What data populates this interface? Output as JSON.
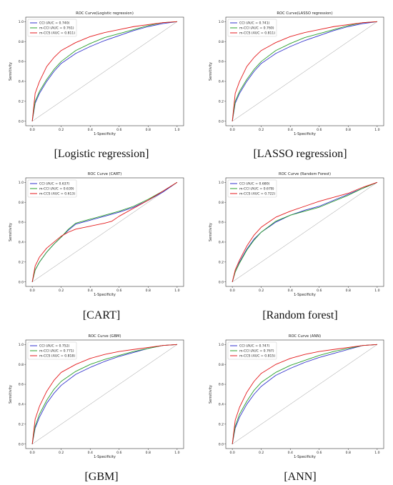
{
  "chart_data": [
    {
      "type": "line",
      "title": "ROC Curve(Logistic regression)",
      "caption": "[Logistic regression]",
      "xlabel": "1-Specificity",
      "ylabel": "Sensitivity",
      "xlim": [
        0,
        1
      ],
      "ylim": [
        0,
        1
      ],
      "xticks": [
        "0.0",
        "0.2",
        "0.4",
        "0.6",
        "0.8",
        "1.0"
      ],
      "yticks": [
        "0.0",
        "0.2",
        "0.4",
        "0.6",
        "0.8",
        "1.0"
      ],
      "legend_position": "top-left",
      "series": [
        {
          "name": "CCI (AUC = 0.740)",
          "color": "#3333cc",
          "x": [
            0,
            0.02,
            0.05,
            0.1,
            0.15,
            0.2,
            0.3,
            0.4,
            0.5,
            0.6,
            0.7,
            0.8,
            0.9,
            1.0
          ],
          "y": [
            0,
            0.18,
            0.28,
            0.4,
            0.5,
            0.58,
            0.68,
            0.75,
            0.81,
            0.86,
            0.91,
            0.95,
            0.98,
            1.0
          ]
        },
        {
          "name": "m-CCI (AUC = 0.761)",
          "color": "#2ca02c",
          "x": [
            0,
            0.02,
            0.05,
            0.1,
            0.15,
            0.2,
            0.3,
            0.4,
            0.5,
            0.6,
            0.7,
            0.8,
            0.9,
            1.0
          ],
          "y": [
            0,
            0.2,
            0.3,
            0.42,
            0.52,
            0.6,
            0.71,
            0.78,
            0.84,
            0.88,
            0.92,
            0.96,
            0.99,
            1.0
          ]
        },
        {
          "name": "m-CCS (AUC = 0.811)",
          "color": "#e41a1c",
          "x": [
            0,
            0.02,
            0.05,
            0.1,
            0.15,
            0.2,
            0.3,
            0.4,
            0.5,
            0.6,
            0.7,
            0.8,
            0.9,
            1.0
          ],
          "y": [
            0,
            0.28,
            0.4,
            0.55,
            0.64,
            0.71,
            0.79,
            0.85,
            0.89,
            0.92,
            0.95,
            0.97,
            0.99,
            1.0
          ]
        }
      ]
    },
    {
      "type": "line",
      "title": "ROC Curve(LASSO regression)",
      "caption": "[LASSO regression]",
      "xlabel": "1-Specificity",
      "ylabel": "Sensitivity",
      "xlim": [
        0,
        1
      ],
      "ylim": [
        0,
        1
      ],
      "xticks": [
        "0.0",
        "0.2",
        "0.4",
        "0.6",
        "0.8",
        "1.0"
      ],
      "yticks": [
        "0.0",
        "0.2",
        "0.4",
        "0.6",
        "0.8",
        "1.0"
      ],
      "legend_position": "top-left",
      "series": [
        {
          "name": "CCI (AUC = 0.741)",
          "color": "#3333cc",
          "x": [
            0,
            0.02,
            0.05,
            0.1,
            0.15,
            0.2,
            0.3,
            0.4,
            0.5,
            0.6,
            0.7,
            0.8,
            0.9,
            1.0
          ],
          "y": [
            0,
            0.18,
            0.28,
            0.4,
            0.5,
            0.58,
            0.68,
            0.75,
            0.81,
            0.86,
            0.91,
            0.95,
            0.98,
            1.0
          ]
        },
        {
          "name": "m-CCI (AUC = 0.760)",
          "color": "#2ca02c",
          "x": [
            0,
            0.02,
            0.05,
            0.1,
            0.15,
            0.2,
            0.3,
            0.4,
            0.5,
            0.6,
            0.7,
            0.8,
            0.9,
            1.0
          ],
          "y": [
            0,
            0.2,
            0.3,
            0.42,
            0.52,
            0.6,
            0.71,
            0.78,
            0.84,
            0.88,
            0.92,
            0.96,
            0.99,
            1.0
          ]
        },
        {
          "name": "m-CCS (AUC = 0.811)",
          "color": "#e41a1c",
          "x": [
            0,
            0.02,
            0.05,
            0.1,
            0.15,
            0.2,
            0.3,
            0.4,
            0.5,
            0.6,
            0.7,
            0.8,
            0.9,
            1.0
          ],
          "y": [
            0,
            0.28,
            0.4,
            0.55,
            0.64,
            0.71,
            0.79,
            0.85,
            0.89,
            0.92,
            0.95,
            0.97,
            0.99,
            1.0
          ]
        }
      ]
    },
    {
      "type": "line",
      "title": "ROC Curve (CART)",
      "caption": "[CART]",
      "xlabel": "1-Specificity",
      "ylabel": "Sensitivity",
      "xlim": [
        0,
        1
      ],
      "ylim": [
        0,
        1
      ],
      "xticks": [
        "0.0",
        "0.2",
        "0.4",
        "0.6",
        "0.8",
        "1.0"
      ],
      "yticks": [
        "0.0",
        "0.2",
        "0.4",
        "0.6",
        "0.8",
        "1.0"
      ],
      "legend_position": "top-left",
      "series": [
        {
          "name": "CCI (AUC = 0.637)",
          "color": "#3333cc",
          "x": [
            0,
            0.02,
            0.05,
            0.1,
            0.15,
            0.2,
            0.25,
            0.3,
            0.4,
            0.5,
            0.6,
            0.7,
            0.8,
            0.9,
            1.0
          ],
          "y": [
            0,
            0.12,
            0.2,
            0.3,
            0.38,
            0.45,
            0.52,
            0.58,
            0.62,
            0.66,
            0.7,
            0.75,
            0.82,
            0.9,
            1.0
          ]
        },
        {
          "name": "m-CCI (AUC = 0.639)",
          "color": "#2ca02c",
          "x": [
            0,
            0.02,
            0.05,
            0.1,
            0.15,
            0.2,
            0.25,
            0.3,
            0.4,
            0.5,
            0.6,
            0.7,
            0.8,
            0.9,
            1.0
          ],
          "y": [
            0,
            0.12,
            0.2,
            0.3,
            0.38,
            0.45,
            0.53,
            0.59,
            0.63,
            0.67,
            0.71,
            0.76,
            0.83,
            0.91,
            1.0
          ]
        },
        {
          "name": "m-CCS (AUC = 0.613)",
          "color": "#e41a1c",
          "x": [
            0,
            0.02,
            0.05,
            0.1,
            0.15,
            0.2,
            0.25,
            0.3,
            0.4,
            0.5,
            0.55,
            0.6,
            0.7,
            0.8,
            0.9,
            1.0
          ],
          "y": [
            0,
            0.16,
            0.25,
            0.34,
            0.4,
            0.46,
            0.5,
            0.53,
            0.56,
            0.59,
            0.61,
            0.66,
            0.74,
            0.82,
            0.91,
            1.0
          ]
        }
      ]
    },
    {
      "type": "line",
      "title": "ROC Curve (Random Forest)",
      "caption": "[Random forest]",
      "xlabel": "1-Specificity",
      "ylabel": "Sensitivity",
      "xlim": [
        0,
        1
      ],
      "ylim": [
        0,
        1
      ],
      "xticks": [
        "0.0",
        "0.2",
        "0.4",
        "0.6",
        "0.8",
        "1.0"
      ],
      "yticks": [
        "0.0",
        "0.2",
        "0.4",
        "0.6",
        "0.8",
        "1.0"
      ],
      "legend_position": "top-left",
      "series": [
        {
          "name": "CCI (AUC = 0.680)",
          "color": "#3333cc",
          "x": [
            0,
            0.02,
            0.05,
            0.1,
            0.15,
            0.2,
            0.3,
            0.4,
            0.5,
            0.6,
            0.7,
            0.8,
            0.9,
            1.0
          ],
          "y": [
            0,
            0.1,
            0.2,
            0.33,
            0.43,
            0.5,
            0.6,
            0.67,
            0.72,
            0.76,
            0.82,
            0.88,
            0.94,
            1.0
          ]
        },
        {
          "name": "m-CCI (AUC = 0.678)",
          "color": "#2ca02c",
          "x": [
            0,
            0.02,
            0.05,
            0.1,
            0.15,
            0.2,
            0.3,
            0.4,
            0.5,
            0.6,
            0.7,
            0.8,
            0.9,
            1.0
          ],
          "y": [
            0,
            0.1,
            0.19,
            0.32,
            0.42,
            0.5,
            0.61,
            0.67,
            0.71,
            0.75,
            0.81,
            0.87,
            0.94,
            1.0
          ]
        },
        {
          "name": "m-CCS (AUC = 0.722)",
          "color": "#e41a1c",
          "x": [
            0,
            0.02,
            0.05,
            0.1,
            0.15,
            0.2,
            0.3,
            0.4,
            0.5,
            0.6,
            0.7,
            0.8,
            0.9,
            1.0
          ],
          "y": [
            0,
            0.12,
            0.22,
            0.36,
            0.47,
            0.55,
            0.65,
            0.71,
            0.76,
            0.81,
            0.85,
            0.89,
            0.95,
            1.0
          ]
        }
      ]
    },
    {
      "type": "line",
      "title": "ROC Curve (GBM)",
      "caption": "[GBM]",
      "xlabel": "1-Specificity",
      "ylabel": "Sensitivity",
      "xlim": [
        0,
        1
      ],
      "ylim": [
        0,
        1
      ],
      "xticks": [
        "0.0",
        "0.2",
        "0.4",
        "0.6",
        "0.8",
        "1.0"
      ],
      "yticks": [
        "0.0",
        "0.2",
        "0.4",
        "0.6",
        "0.8",
        "1.0"
      ],
      "legend_position": "top-left",
      "series": [
        {
          "name": "CCI (AUC = 0.752)",
          "color": "#3333cc",
          "x": [
            0,
            0.02,
            0.05,
            0.1,
            0.15,
            0.2,
            0.3,
            0.4,
            0.5,
            0.6,
            0.7,
            0.8,
            0.9,
            1.0
          ],
          "y": [
            0,
            0.16,
            0.27,
            0.41,
            0.51,
            0.59,
            0.7,
            0.77,
            0.83,
            0.88,
            0.92,
            0.96,
            0.99,
            1.0
          ]
        },
        {
          "name": "m-CCI (AUC = 0.771)",
          "color": "#2ca02c",
          "x": [
            0,
            0.02,
            0.05,
            0.1,
            0.15,
            0.2,
            0.3,
            0.4,
            0.5,
            0.6,
            0.7,
            0.8,
            0.9,
            1.0
          ],
          "y": [
            0,
            0.18,
            0.3,
            0.44,
            0.55,
            0.63,
            0.73,
            0.8,
            0.85,
            0.89,
            0.93,
            0.96,
            0.99,
            1.0
          ]
        },
        {
          "name": "m-CCS (AUC = 0.818)",
          "color": "#e41a1c",
          "x": [
            0,
            0.02,
            0.05,
            0.1,
            0.15,
            0.2,
            0.3,
            0.4,
            0.5,
            0.6,
            0.7,
            0.8,
            0.9,
            1.0
          ],
          "y": [
            0,
            0.25,
            0.38,
            0.53,
            0.64,
            0.72,
            0.8,
            0.86,
            0.9,
            0.93,
            0.95,
            0.97,
            0.99,
            1.0
          ]
        }
      ]
    },
    {
      "type": "line",
      "title": "ROC Curve (ANN)",
      "caption": "[ANN]",
      "xlabel": "1-Specificity",
      "ylabel": "Sensitivity",
      "xlim": [
        0,
        1
      ],
      "ylim": [
        0,
        1
      ],
      "xticks": [
        "0.0",
        "0.2",
        "0.4",
        "0.6",
        "0.8",
        "1.0"
      ],
      "yticks": [
        "0.0",
        "0.2",
        "0.4",
        "0.6",
        "0.8",
        "1.0"
      ],
      "legend_position": "top-left",
      "series": [
        {
          "name": "CCI (AUC = 0.747)",
          "color": "#3333cc",
          "x": [
            0,
            0.02,
            0.05,
            0.1,
            0.15,
            0.2,
            0.3,
            0.4,
            0.5,
            0.6,
            0.7,
            0.8,
            0.9,
            1.0
          ],
          "y": [
            0,
            0.16,
            0.27,
            0.4,
            0.5,
            0.58,
            0.69,
            0.76,
            0.82,
            0.87,
            0.91,
            0.95,
            0.99,
            1.0
          ]
        },
        {
          "name": "m-CCI (AUC = 0.767)",
          "color": "#2ca02c",
          "x": [
            0,
            0.02,
            0.05,
            0.1,
            0.15,
            0.2,
            0.3,
            0.4,
            0.5,
            0.6,
            0.7,
            0.8,
            0.9,
            1.0
          ],
          "y": [
            0,
            0.18,
            0.3,
            0.43,
            0.54,
            0.62,
            0.72,
            0.79,
            0.84,
            0.89,
            0.93,
            0.96,
            0.99,
            1.0
          ]
        },
        {
          "name": "m-CCS (AUC = 0.815)",
          "color": "#e41a1c",
          "x": [
            0,
            0.02,
            0.05,
            0.1,
            0.15,
            0.2,
            0.3,
            0.4,
            0.5,
            0.6,
            0.7,
            0.8,
            0.9,
            1.0
          ],
          "y": [
            0,
            0.24,
            0.37,
            0.52,
            0.63,
            0.71,
            0.8,
            0.86,
            0.9,
            0.93,
            0.95,
            0.97,
            0.99,
            1.0
          ]
        }
      ]
    }
  ]
}
